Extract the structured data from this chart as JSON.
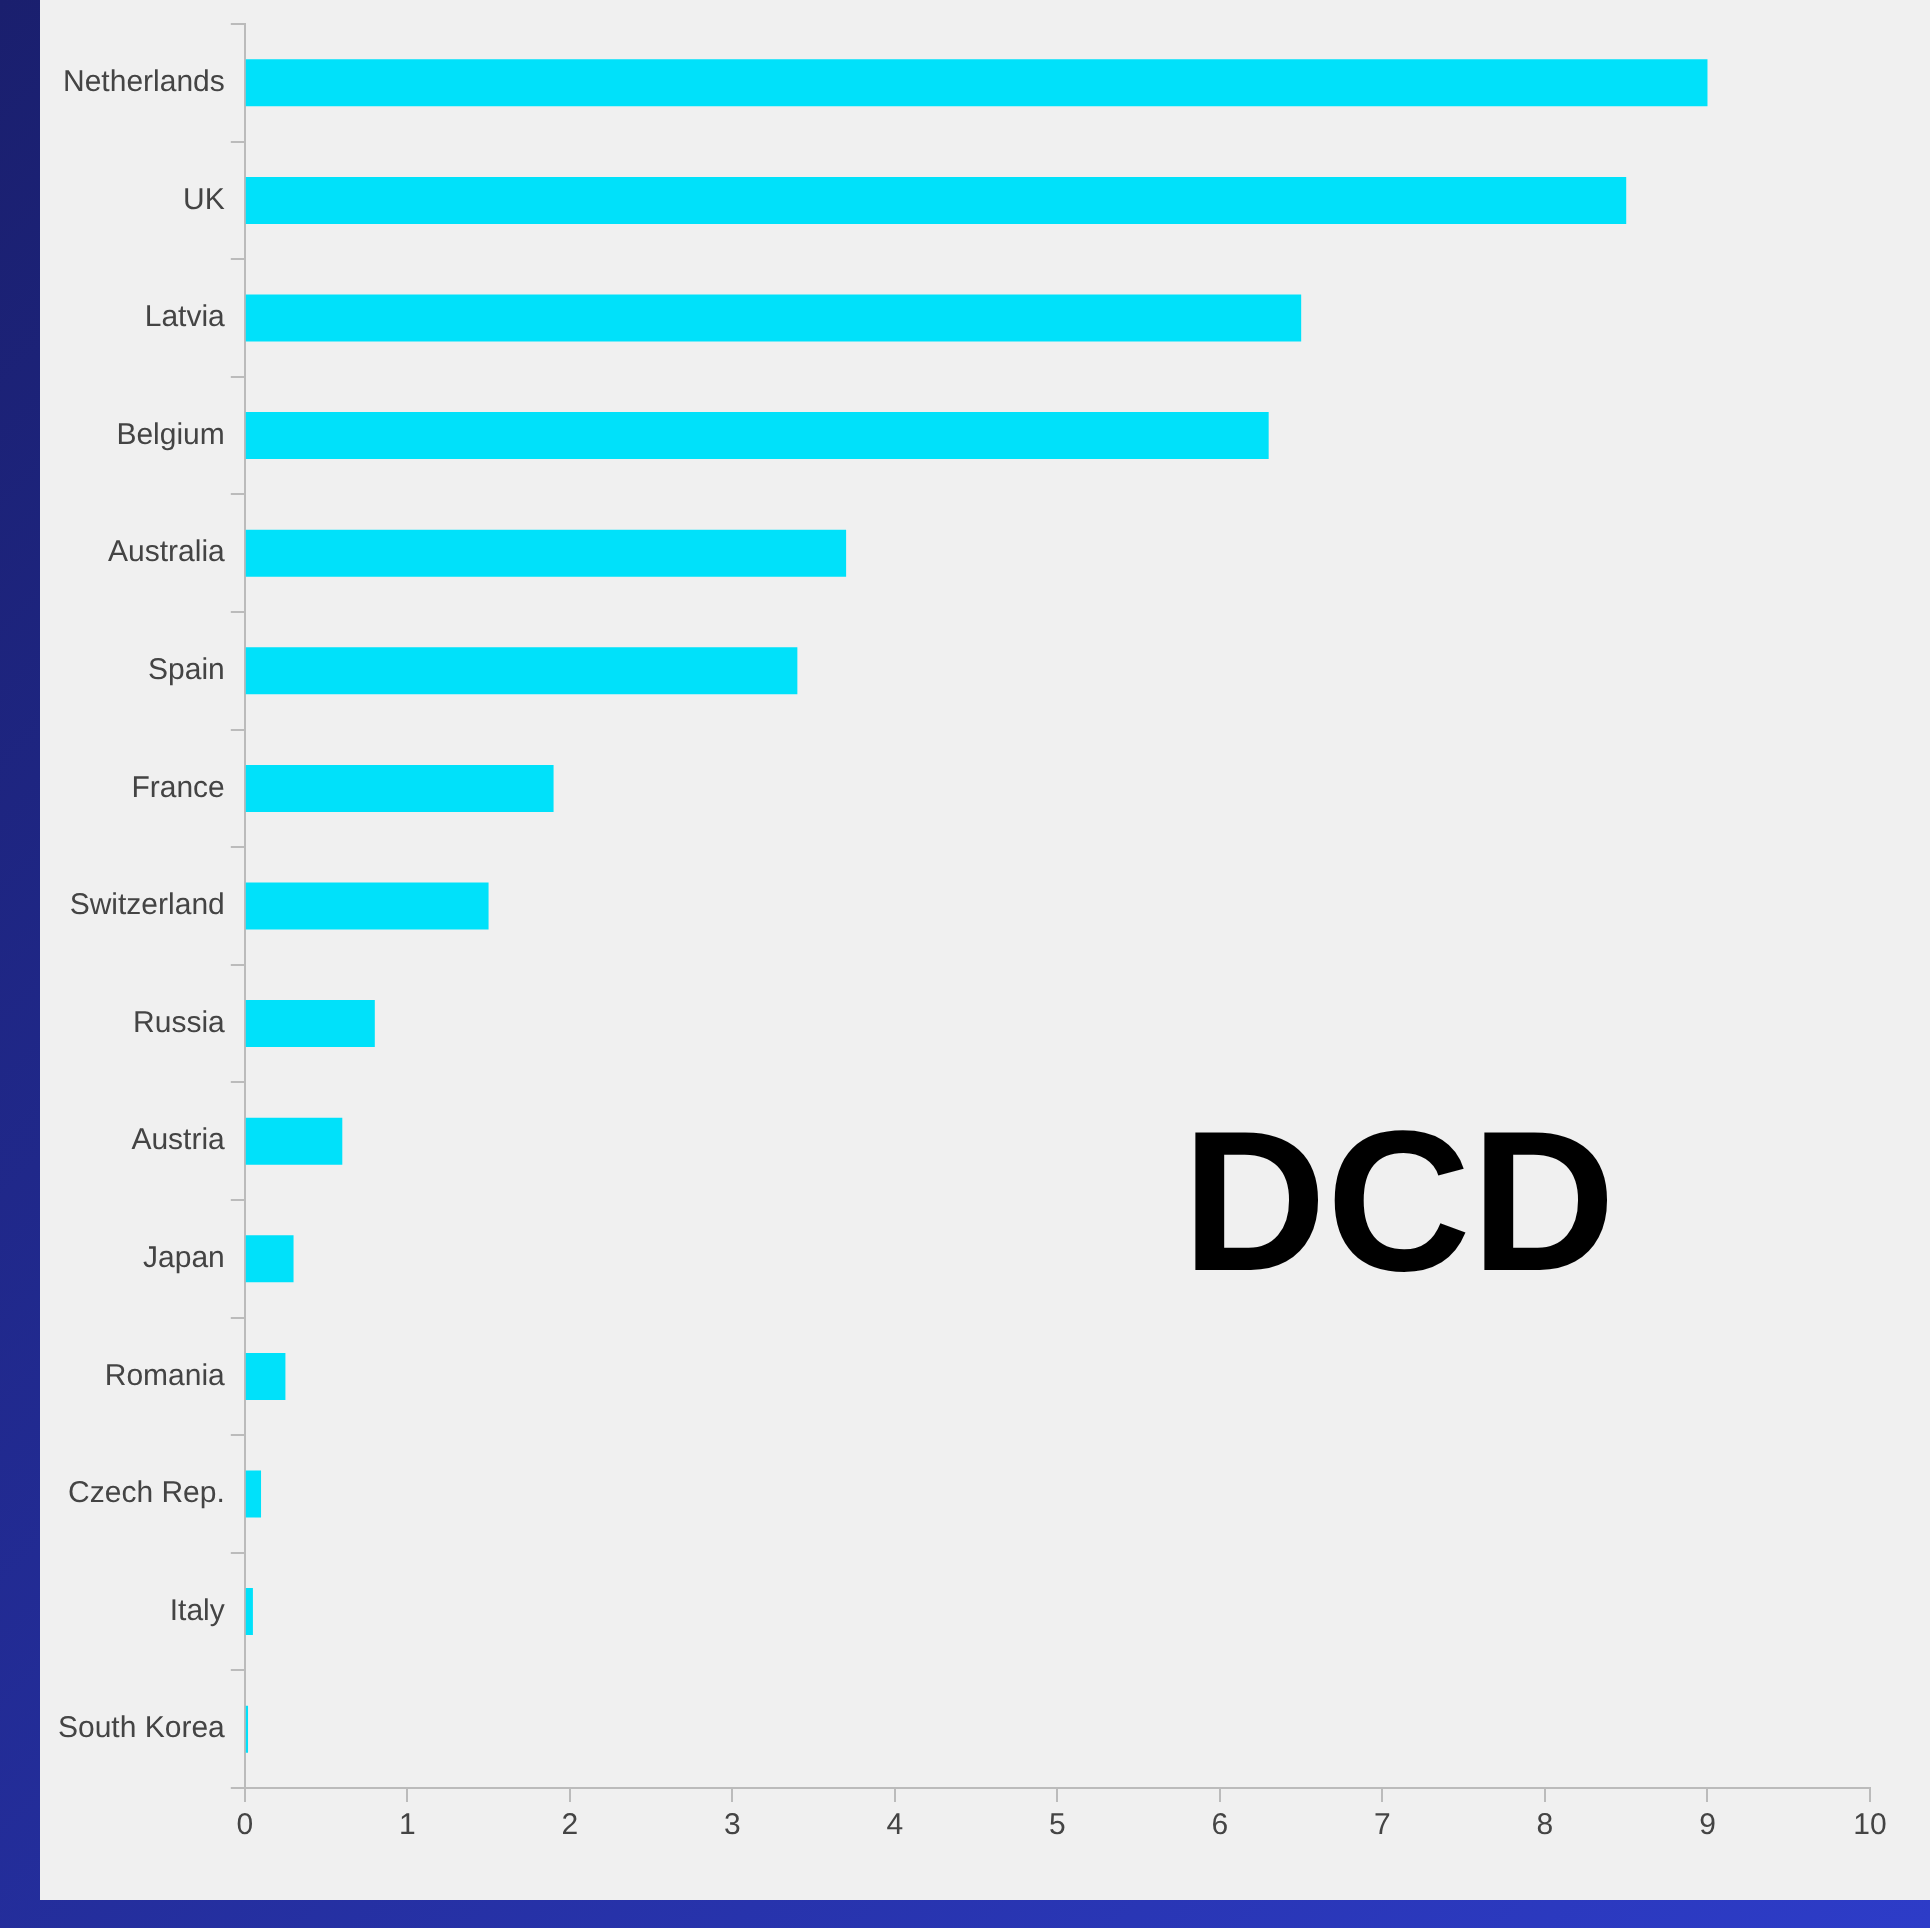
{
  "chart_data": {
    "type": "bar",
    "orientation": "horizontal",
    "categories": [
      "Netherlands",
      "UK",
      "Latvia",
      "Belgium",
      "Australia",
      "Spain",
      "France",
      "Switzerland",
      "Russia",
      "Austria",
      "Japan",
      "Romania",
      "Czech Rep.",
      "Italy",
      "South Korea"
    ],
    "values": [
      9.0,
      8.5,
      6.5,
      6.3,
      3.7,
      3.4,
      1.9,
      1.5,
      0.8,
      0.6,
      0.3,
      0.25,
      0.1,
      0.05,
      0.02
    ],
    "color": "#00e1fa",
    "xlim": [
      0,
      10
    ],
    "xticks": [
      0,
      1,
      2,
      3,
      4,
      5,
      6,
      7,
      8,
      9,
      10
    ],
    "annotations": [
      "DCD"
    ]
  }
}
